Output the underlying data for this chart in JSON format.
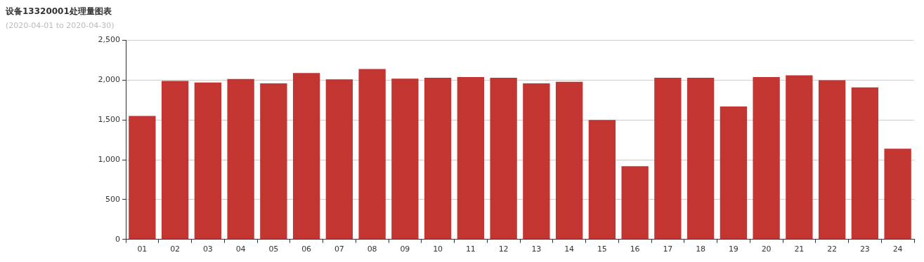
{
  "chart_data": {
    "type": "bar",
    "title": "设备13320001处理量图表",
    "subtitle": "(2020-04-01 to 2020-04-30)",
    "categories": [
      "01",
      "02",
      "03",
      "04",
      "05",
      "06",
      "07",
      "08",
      "09",
      "10",
      "11",
      "12",
      "13",
      "14",
      "15",
      "16",
      "17",
      "18",
      "19",
      "20",
      "21",
      "22",
      "23",
      "24"
    ],
    "values": [
      1550,
      1990,
      1970,
      2015,
      1960,
      2090,
      2010,
      2140,
      2020,
      2030,
      2040,
      2030,
      1960,
      1980,
      1500,
      920,
      2030,
      2030,
      1670,
      2040,
      2060,
      2000,
      1910,
      1140
    ],
    "color": "#c23531",
    "ylim": [
      0,
      2500
    ],
    "yticks": [
      {
        "value": 0,
        "label": "0"
      },
      {
        "value": 500,
        "label": "500"
      },
      {
        "value": 1000,
        "label": "1,000"
      },
      {
        "value": 1500,
        "label": "1,500"
      },
      {
        "value": 2000,
        "label": "2,000"
      },
      {
        "value": 2500,
        "label": "2,500"
      }
    ],
    "grid": "y",
    "legend": false
  }
}
